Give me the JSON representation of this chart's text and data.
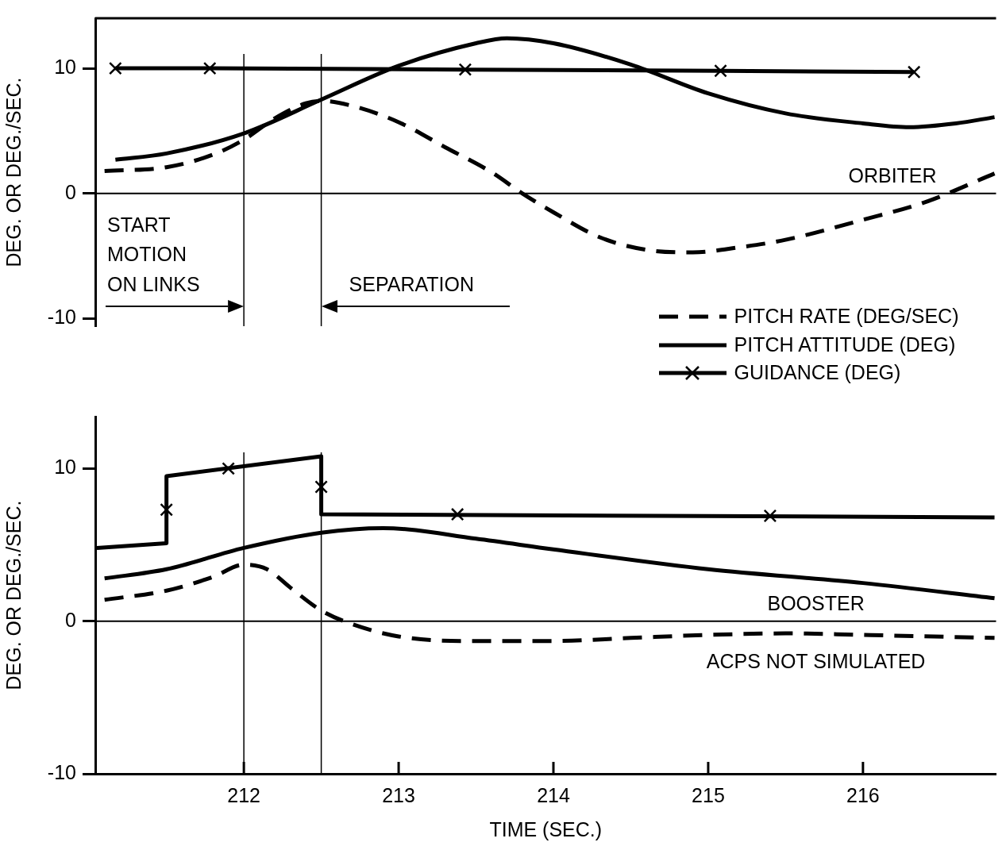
{
  "chart_data": [
    {
      "type": "line",
      "ylabel": "DEG. OR DEG./SEC.",
      "xlim": [
        211.04,
        216.86
      ],
      "xticks": [
        212,
        213,
        214,
        215,
        216
      ],
      "ylim": [
        -10.6,
        14
      ],
      "yticks": [
        -10,
        0,
        10
      ],
      "tick_labels": "y",
      "legend": "bottom right",
      "series": [
        {
          "name": "PITCH RATE (DEG/SEC)",
          "color": "#000000",
          "line_style": "dashed",
          "x": [
            211.1,
            211.5,
            211.8,
            212,
            212.2,
            212.4,
            212.5,
            212.7,
            213,
            213.3,
            213.6,
            213.8,
            214,
            214.3,
            214.6,
            214.9,
            215.2,
            215.5,
            216,
            216.4,
            216.85
          ],
          "values": [
            1.8,
            2.1,
            3.1,
            4.3,
            6.0,
            7.2,
            7.4,
            7.0,
            5.7,
            3.7,
            1.7,
            0,
            -1.5,
            -3.5,
            -4.5,
            -4.7,
            -4.3,
            -3.7,
            -2.1,
            -0.7,
            1.6
          ]
        },
        {
          "name": "PITCH ATTITUDE (DEG)",
          "color": "#000000",
          "line_style": "solid",
          "x": [
            211.17,
            211.5,
            212,
            212.5,
            213,
            213.5,
            213.7,
            214,
            214.5,
            215,
            215.5,
            216,
            216.3,
            216.6,
            216.85
          ],
          "values": [
            2.7,
            3.2,
            4.8,
            7.5,
            10.2,
            12.0,
            12.4,
            12.0,
            10.3,
            8.0,
            6.4,
            5.6,
            5.3,
            5.6,
            6.1
          ]
        },
        {
          "name": "GUIDANCE (DEG)",
          "color": "#000000",
          "line_style": "solid",
          "marker": "cross",
          "x": [
            211.17,
            211.78,
            213.43,
            215.08,
            216.33
          ],
          "values": [
            10,
            10,
            9.9,
            9.8,
            9.7
          ]
        }
      ],
      "ref_lines": [
        {
          "axis": "y",
          "value": 0
        },
        {
          "axis": "x",
          "value": 212,
          "label": "START\nMOTION\nON LINKS"
        },
        {
          "axis": "x",
          "value": 212.5,
          "label": "SEPARATION"
        }
      ],
      "annotations": [
        "ORBITER"
      ]
    },
    {
      "type": "line",
      "xlabel": "TIME (SEC.)",
      "ylabel": "DEG. OR DEG./SEC.",
      "xlim": [
        211.04,
        216.86
      ],
      "xticks": [
        212,
        213,
        214,
        215,
        216
      ],
      "ylim": [
        -10,
        13.4
      ],
      "yticks": [
        -10,
        0,
        10
      ],
      "series": [
        {
          "color": "#000000",
          "line_style": "dashed",
          "x": [
            211.1,
            211.5,
            211.8,
            212,
            212.15,
            212.3,
            212.5,
            212.7,
            213,
            213.4,
            214,
            214.5,
            215,
            215.5,
            216,
            216.85
          ],
          "values": [
            1.4,
            2.0,
            2.9,
            3.7,
            3.4,
            2.2,
            0.7,
            -0.2,
            -1.0,
            -1.3,
            -1.3,
            -1.1,
            -0.9,
            -0.8,
            -0.9,
            -1.1
          ]
        },
        {
          "color": "#000000",
          "line_style": "solid",
          "x": [
            211.1,
            211.5,
            212,
            212.5,
            212.9,
            213.5,
            214,
            215,
            216,
            216.85
          ],
          "values": [
            2.8,
            3.4,
            4.8,
            5.8,
            6.1,
            5.4,
            4.7,
            3.4,
            2.5,
            1.5
          ]
        },
        {
          "color": "#000000",
          "line_style": "solid",
          "x": [
            211.05,
            211.5,
            211.5,
            212.5,
            212.5,
            216.85
          ],
          "values": [
            4.8,
            5.1,
            9.5,
            10.8,
            7.0,
            6.8
          ]
        },
        {
          "type": "scatter",
          "color": "#000000",
          "marker": "cross",
          "x": [
            211.5,
            211.9,
            212.5,
            213.38,
            215.4
          ],
          "values": [
            7.3,
            10.0,
            8.8,
            7.0,
            6.9
          ]
        }
      ],
      "ref_lines": [
        {
          "axis": "y",
          "value": 0
        },
        {
          "axis": "x",
          "value": 212
        },
        {
          "axis": "x",
          "value": 212.5
        }
      ],
      "annotations": [
        "BOOSTER",
        "ACPS NOT SIMULATED"
      ]
    }
  ]
}
